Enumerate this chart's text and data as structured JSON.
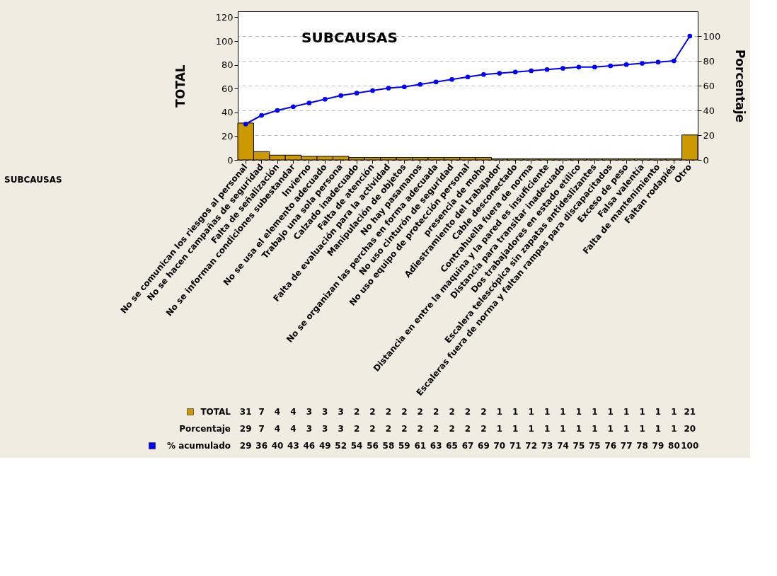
{
  "chart_data": {
    "type": "bar",
    "title": "SUBCAUSAS",
    "ylabel": "TOTAL",
    "y2label": "Porcentaje",
    "categories": [
      "No se comunican los riesgos al personal",
      "No se hacen campañas de seguridad",
      "Falta de señalización",
      "No se informan condiciones subestandar",
      "Invierno",
      "No se usa el elemento adecuado",
      "Trabajo una sola persona",
      "Calzado inadecuado",
      "Falta de atención",
      "Falta de evaluación para la actividad",
      "Manipulación de objetos",
      "No hay pasamanos",
      "No se organizan las perchas en forma adecuada",
      "No uso cinturón de seguridad",
      "No uso equipo de protección personal",
      "presencia de moho",
      "Adiestramiento del trabajador",
      "Cable desconectado",
      "Contrahuella fuera de norma",
      "Distancia en entre la maquina y la pared es insuficiente",
      "Distancia para transitar  inadecuado",
      "Dos trabajadores en estado etílico",
      "Escalera telescópica sin zapatas antideslizantes",
      "Escaleras fuera de norma y faltan rampas para discapacitados",
      "Exceso de peso",
      "Falsa valentía",
      "Falta de mantenimiento",
      "Faltan rodapiés",
      "Otro"
    ],
    "series": [
      {
        "name": "TOTAL",
        "color": "#cc9900",
        "values": [
          31,
          7,
          4,
          4,
          3,
          3,
          3,
          2,
          2,
          2,
          2,
          2,
          2,
          2,
          2,
          2,
          1,
          1,
          1,
          1,
          1,
          1,
          1,
          1,
          1,
          1,
          1,
          1,
          21
        ]
      },
      {
        "name": "% acumulado",
        "type": "line",
        "axis": "y2",
        "color": "#0000ff",
        "values": [
          29,
          36,
          40,
          43,
          46,
          49,
          52,
          54,
          56,
          58,
          59,
          61,
          63,
          65,
          67,
          69,
          70,
          71,
          72,
          73,
          74,
          75,
          75,
          76,
          77,
          78,
          79,
          80,
          100
        ]
      }
    ],
    "annotations": [
      "SUBCAUSAS",
      "Porcentaje",
      "29",
      "7",
      "4",
      "4",
      "3",
      "3",
      "3",
      "2",
      "2",
      "2",
      "2",
      "2",
      "2",
      "2",
      "2",
      "2",
      "1",
      "1",
      "1",
      "1",
      "1",
      "1",
      "1",
      "1",
      "1",
      "1",
      "1",
      "1",
      "20"
    ],
    "data_labels": true,
    "marker": "circle",
    "grid": true,
    "legend": "bottom left",
    "ylim": [
      0,
      125
    ],
    "yticks": [
      0,
      20,
      40,
      60,
      80,
      100,
      120
    ],
    "y2lim": [
      0,
      120
    ],
    "y2ticks": [
      0,
      20,
      40,
      60,
      80,
      100
    ]
  }
}
